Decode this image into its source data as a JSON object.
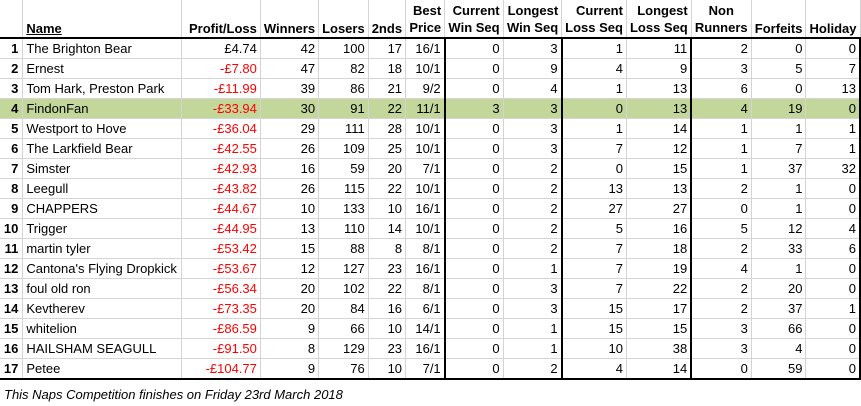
{
  "headers": {
    "rank": "",
    "name": "Name",
    "profit": "Profit/Loss",
    "winners": "Winners",
    "losers": "Losers",
    "seconds": "2nds",
    "best_price": [
      "Best",
      "Price"
    ],
    "cur_win": [
      "Current",
      "Win Seq"
    ],
    "long_win": [
      "Longest",
      "Win Seq"
    ],
    "cur_loss": [
      "Current",
      "Loss Seq"
    ],
    "long_loss": [
      "Longest",
      "Loss Seq"
    ],
    "non_runners": [
      "Non",
      "Runners"
    ],
    "forfeits": "Forfeits",
    "holiday": "Holiday"
  },
  "highlight_color": "#c4d79b",
  "negative_color": "#ff0000",
  "rows": [
    {
      "rank": "1",
      "name": "The Brighton Bear",
      "profit": "£4.74",
      "winners": "42",
      "losers": "100",
      "seconds": "17",
      "best_price": "16/1",
      "cur_win": "0",
      "long_win": "3",
      "cur_loss": "1",
      "long_loss": "11",
      "non_runners": "2",
      "forfeits": "0",
      "holiday": "0"
    },
    {
      "rank": "2",
      "name": "Ernest",
      "profit": "-£7.80",
      "winners": "47",
      "losers": "82",
      "seconds": "18",
      "best_price": "10/1",
      "cur_win": "0",
      "long_win": "9",
      "cur_loss": "4",
      "long_loss": "9",
      "non_runners": "3",
      "forfeits": "5",
      "holiday": "7"
    },
    {
      "rank": "3",
      "name": "Tom Hark, Preston Park",
      "profit": "-£11.99",
      "winners": "39",
      "losers": "86",
      "seconds": "21",
      "best_price": "9/2",
      "cur_win": "0",
      "long_win": "4",
      "cur_loss": "1",
      "long_loss": "13",
      "non_runners": "6",
      "forfeits": "0",
      "holiday": "13"
    },
    {
      "rank": "4",
      "name": "FindonFan",
      "profit": "-£33.94",
      "winners": "30",
      "losers": "91",
      "seconds": "22",
      "best_price": "11/1",
      "cur_win": "3",
      "long_win": "3",
      "cur_loss": "0",
      "long_loss": "13",
      "non_runners": "4",
      "forfeits": "19",
      "holiday": "0"
    },
    {
      "rank": "5",
      "name": "Westport to Hove",
      "profit": "-£36.04",
      "winners": "29",
      "losers": "111",
      "seconds": "28",
      "best_price": "10/1",
      "cur_win": "0",
      "long_win": "3",
      "cur_loss": "1",
      "long_loss": "14",
      "non_runners": "1",
      "forfeits": "1",
      "holiday": "1"
    },
    {
      "rank": "6",
      "name": "The Larkfield Bear",
      "profit": "-£42.55",
      "winners": "26",
      "losers": "109",
      "seconds": "25",
      "best_price": "10/1",
      "cur_win": "0",
      "long_win": "3",
      "cur_loss": "7",
      "long_loss": "12",
      "non_runners": "1",
      "forfeits": "7",
      "holiday": "1"
    },
    {
      "rank": "7",
      "name": "Simster",
      "profit": "-£42.93",
      "winners": "16",
      "losers": "59",
      "seconds": "20",
      "best_price": "7/1",
      "cur_win": "0",
      "long_win": "2",
      "cur_loss": "0",
      "long_loss": "15",
      "non_runners": "1",
      "forfeits": "37",
      "holiday": "32"
    },
    {
      "rank": "8",
      "name": "Leegull",
      "profit": "-£43.82",
      "winners": "26",
      "losers": "115",
      "seconds": "22",
      "best_price": "10/1",
      "cur_win": "0",
      "long_win": "2",
      "cur_loss": "13",
      "long_loss": "13",
      "non_runners": "2",
      "forfeits": "1",
      "holiday": "0"
    },
    {
      "rank": "9",
      "name": "CHAPPERS",
      "profit": "-£44.67",
      "winners": "10",
      "losers": "133",
      "seconds": "10",
      "best_price": "16/1",
      "cur_win": "0",
      "long_win": "2",
      "cur_loss": "27",
      "long_loss": "27",
      "non_runners": "0",
      "forfeits": "1",
      "holiday": "0"
    },
    {
      "rank": "10",
      "name": "Trigger",
      "profit": "-£44.95",
      "winners": "13",
      "losers": "110",
      "seconds": "14",
      "best_price": "10/1",
      "cur_win": "0",
      "long_win": "2",
      "cur_loss": "5",
      "long_loss": "16",
      "non_runners": "5",
      "forfeits": "12",
      "holiday": "4"
    },
    {
      "rank": "11",
      "name": "martin tyler",
      "profit": "-£53.42",
      "winners": "15",
      "losers": "88",
      "seconds": "8",
      "best_price": "8/1",
      "cur_win": "0",
      "long_win": "2",
      "cur_loss": "7",
      "long_loss": "18",
      "non_runners": "2",
      "forfeits": "33",
      "holiday": "6"
    },
    {
      "rank": "12",
      "name": "Cantona's Flying Dropkick",
      "profit": "-£53.67",
      "winners": "12",
      "losers": "127",
      "seconds": "23",
      "best_price": "16/1",
      "cur_win": "0",
      "long_win": "1",
      "cur_loss": "7",
      "long_loss": "19",
      "non_runners": "4",
      "forfeits": "1",
      "holiday": "0"
    },
    {
      "rank": "13",
      "name": "foul old ron",
      "profit": "-£56.34",
      "winners": "20",
      "losers": "102",
      "seconds": "22",
      "best_price": "8/1",
      "cur_win": "0",
      "long_win": "3",
      "cur_loss": "7",
      "long_loss": "22",
      "non_runners": "2",
      "forfeits": "20",
      "holiday": "0"
    },
    {
      "rank": "14",
      "name": "Kevtherev",
      "profit": "-£73.35",
      "winners": "20",
      "losers": "84",
      "seconds": "16",
      "best_price": "6/1",
      "cur_win": "0",
      "long_win": "3",
      "cur_loss": "15",
      "long_loss": "17",
      "non_runners": "2",
      "forfeits": "37",
      "holiday": "1"
    },
    {
      "rank": "15",
      "name": "whitelion",
      "profit": "-£86.59",
      "winners": "9",
      "losers": "66",
      "seconds": "10",
      "best_price": "14/1",
      "cur_win": "0",
      "long_win": "1",
      "cur_loss": "15",
      "long_loss": "15",
      "non_runners": "3",
      "forfeits": "66",
      "holiday": "0"
    },
    {
      "rank": "16",
      "name": "HAILSHAM SEAGULL",
      "profit": "-£91.50",
      "winners": "8",
      "losers": "129",
      "seconds": "23",
      "best_price": "16/1",
      "cur_win": "0",
      "long_win": "1",
      "cur_loss": "10",
      "long_loss": "38",
      "non_runners": "3",
      "forfeits": "4",
      "holiday": "0"
    },
    {
      "rank": "17",
      "name": "Petee",
      "profit": "-£104.77",
      "winners": "9",
      "losers": "76",
      "seconds": "10",
      "best_price": "7/1",
      "cur_win": "0",
      "long_win": "2",
      "cur_loss": "4",
      "long_loss": "14",
      "non_runners": "0",
      "forfeits": "59",
      "holiday": "0"
    }
  ],
  "highlighted_row": 3,
  "footer": "This Naps Competition finishes on Friday 23rd March 2018"
}
